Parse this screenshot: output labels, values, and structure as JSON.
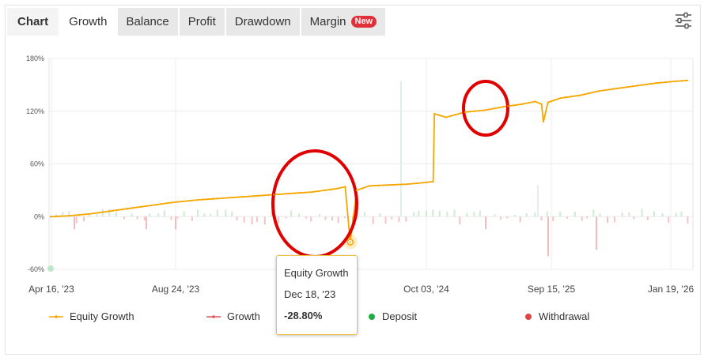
{
  "tabs": {
    "chart_label": "Chart",
    "growth": "Growth",
    "balance": "Balance",
    "profit": "Profit",
    "drawdown": "Drawdown",
    "margin": "Margin",
    "new_badge": "New"
  },
  "settings": {
    "icon": "sliders-icon"
  },
  "colors": {
    "equity": "#f5a700",
    "growth": "#e05555",
    "deposit": "#22aa44",
    "withdrawal": "#e04444",
    "highlight": "#e00000"
  },
  "legend": {
    "equity_growth": "Equity Growth",
    "growth": "Growth",
    "deposit": "Deposit",
    "withdrawal": "Withdrawal"
  },
  "tooltip": {
    "title": "Equity Growth",
    "date": "Dec 18, '23",
    "value": "-28.80%"
  },
  "chart_data": {
    "type": "line",
    "y_ticks": [
      "180%",
      "120%",
      "60%",
      "0%",
      "-60%"
    ],
    "y_tick_values": [
      180,
      120,
      60,
      0,
      -60
    ],
    "ylim": [
      -60,
      180
    ],
    "x_ticks": [
      "Apr 16, '23",
      "Aug 24, '23",
      "Oct 03, '24",
      "Sep 15, '25",
      "Jan 19, '26"
    ],
    "grid": true,
    "legend_position": "bottom",
    "series": [
      {
        "name": "Equity Growth",
        "points": [
          [
            0,
            0
          ],
          [
            3,
            1
          ],
          [
            6,
            3
          ],
          [
            9,
            6
          ],
          [
            12,
            9
          ],
          [
            15,
            12
          ],
          [
            19,
            16
          ],
          [
            23,
            19
          ],
          [
            27,
            21
          ],
          [
            31,
            23
          ],
          [
            35,
            25
          ],
          [
            39,
            27
          ],
          [
            41,
            28
          ],
          [
            43,
            30
          ],
          [
            44,
            31
          ],
          [
            45,
            32
          ],
          [
            46.2,
            34
          ],
          [
            47,
            -29
          ],
          [
            48,
            30
          ],
          [
            50,
            35
          ],
          [
            53,
            36
          ],
          [
            56,
            37
          ],
          [
            59,
            39
          ],
          [
            60,
            40
          ],
          [
            60.2,
            117
          ],
          [
            62,
            113
          ],
          [
            65,
            119
          ],
          [
            68,
            121
          ],
          [
            71,
            125
          ],
          [
            74,
            128
          ],
          [
            76,
            131
          ],
          [
            77,
            128
          ],
          [
            77.3,
            108
          ],
          [
            78,
            130
          ],
          [
            80,
            135
          ],
          [
            83,
            138
          ],
          [
            86,
            143
          ],
          [
            89,
            146
          ],
          [
            92,
            149
          ],
          [
            95,
            152
          ],
          [
            98,
            154
          ],
          [
            100,
            155
          ]
        ]
      }
    ],
    "annotations": [
      {
        "type": "circle",
        "target": "Dec 18, '23 drop",
        "value": -28.8
      },
      {
        "type": "circle",
        "target": "second drop",
        "value": 108
      }
    ]
  }
}
